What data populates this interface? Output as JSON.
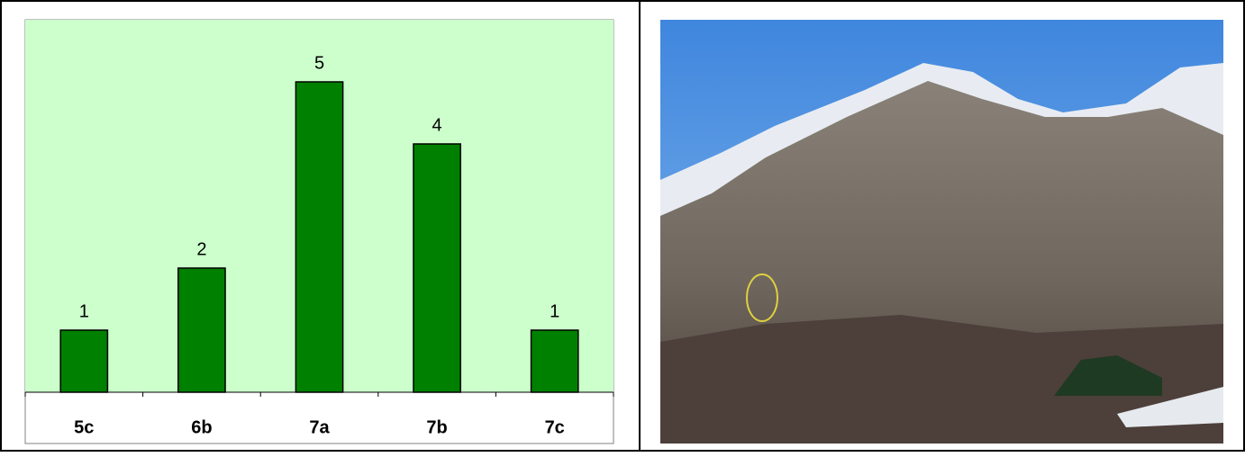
{
  "chart_data": {
    "type": "bar",
    "categories": [
      "5c",
      "6b",
      "7a",
      "7b",
      "7c"
    ],
    "values": [
      1,
      2,
      5,
      4,
      1
    ],
    "color": "#008000",
    "plot_background": "#ccffcc",
    "ylim": [
      0,
      6
    ]
  }
}
